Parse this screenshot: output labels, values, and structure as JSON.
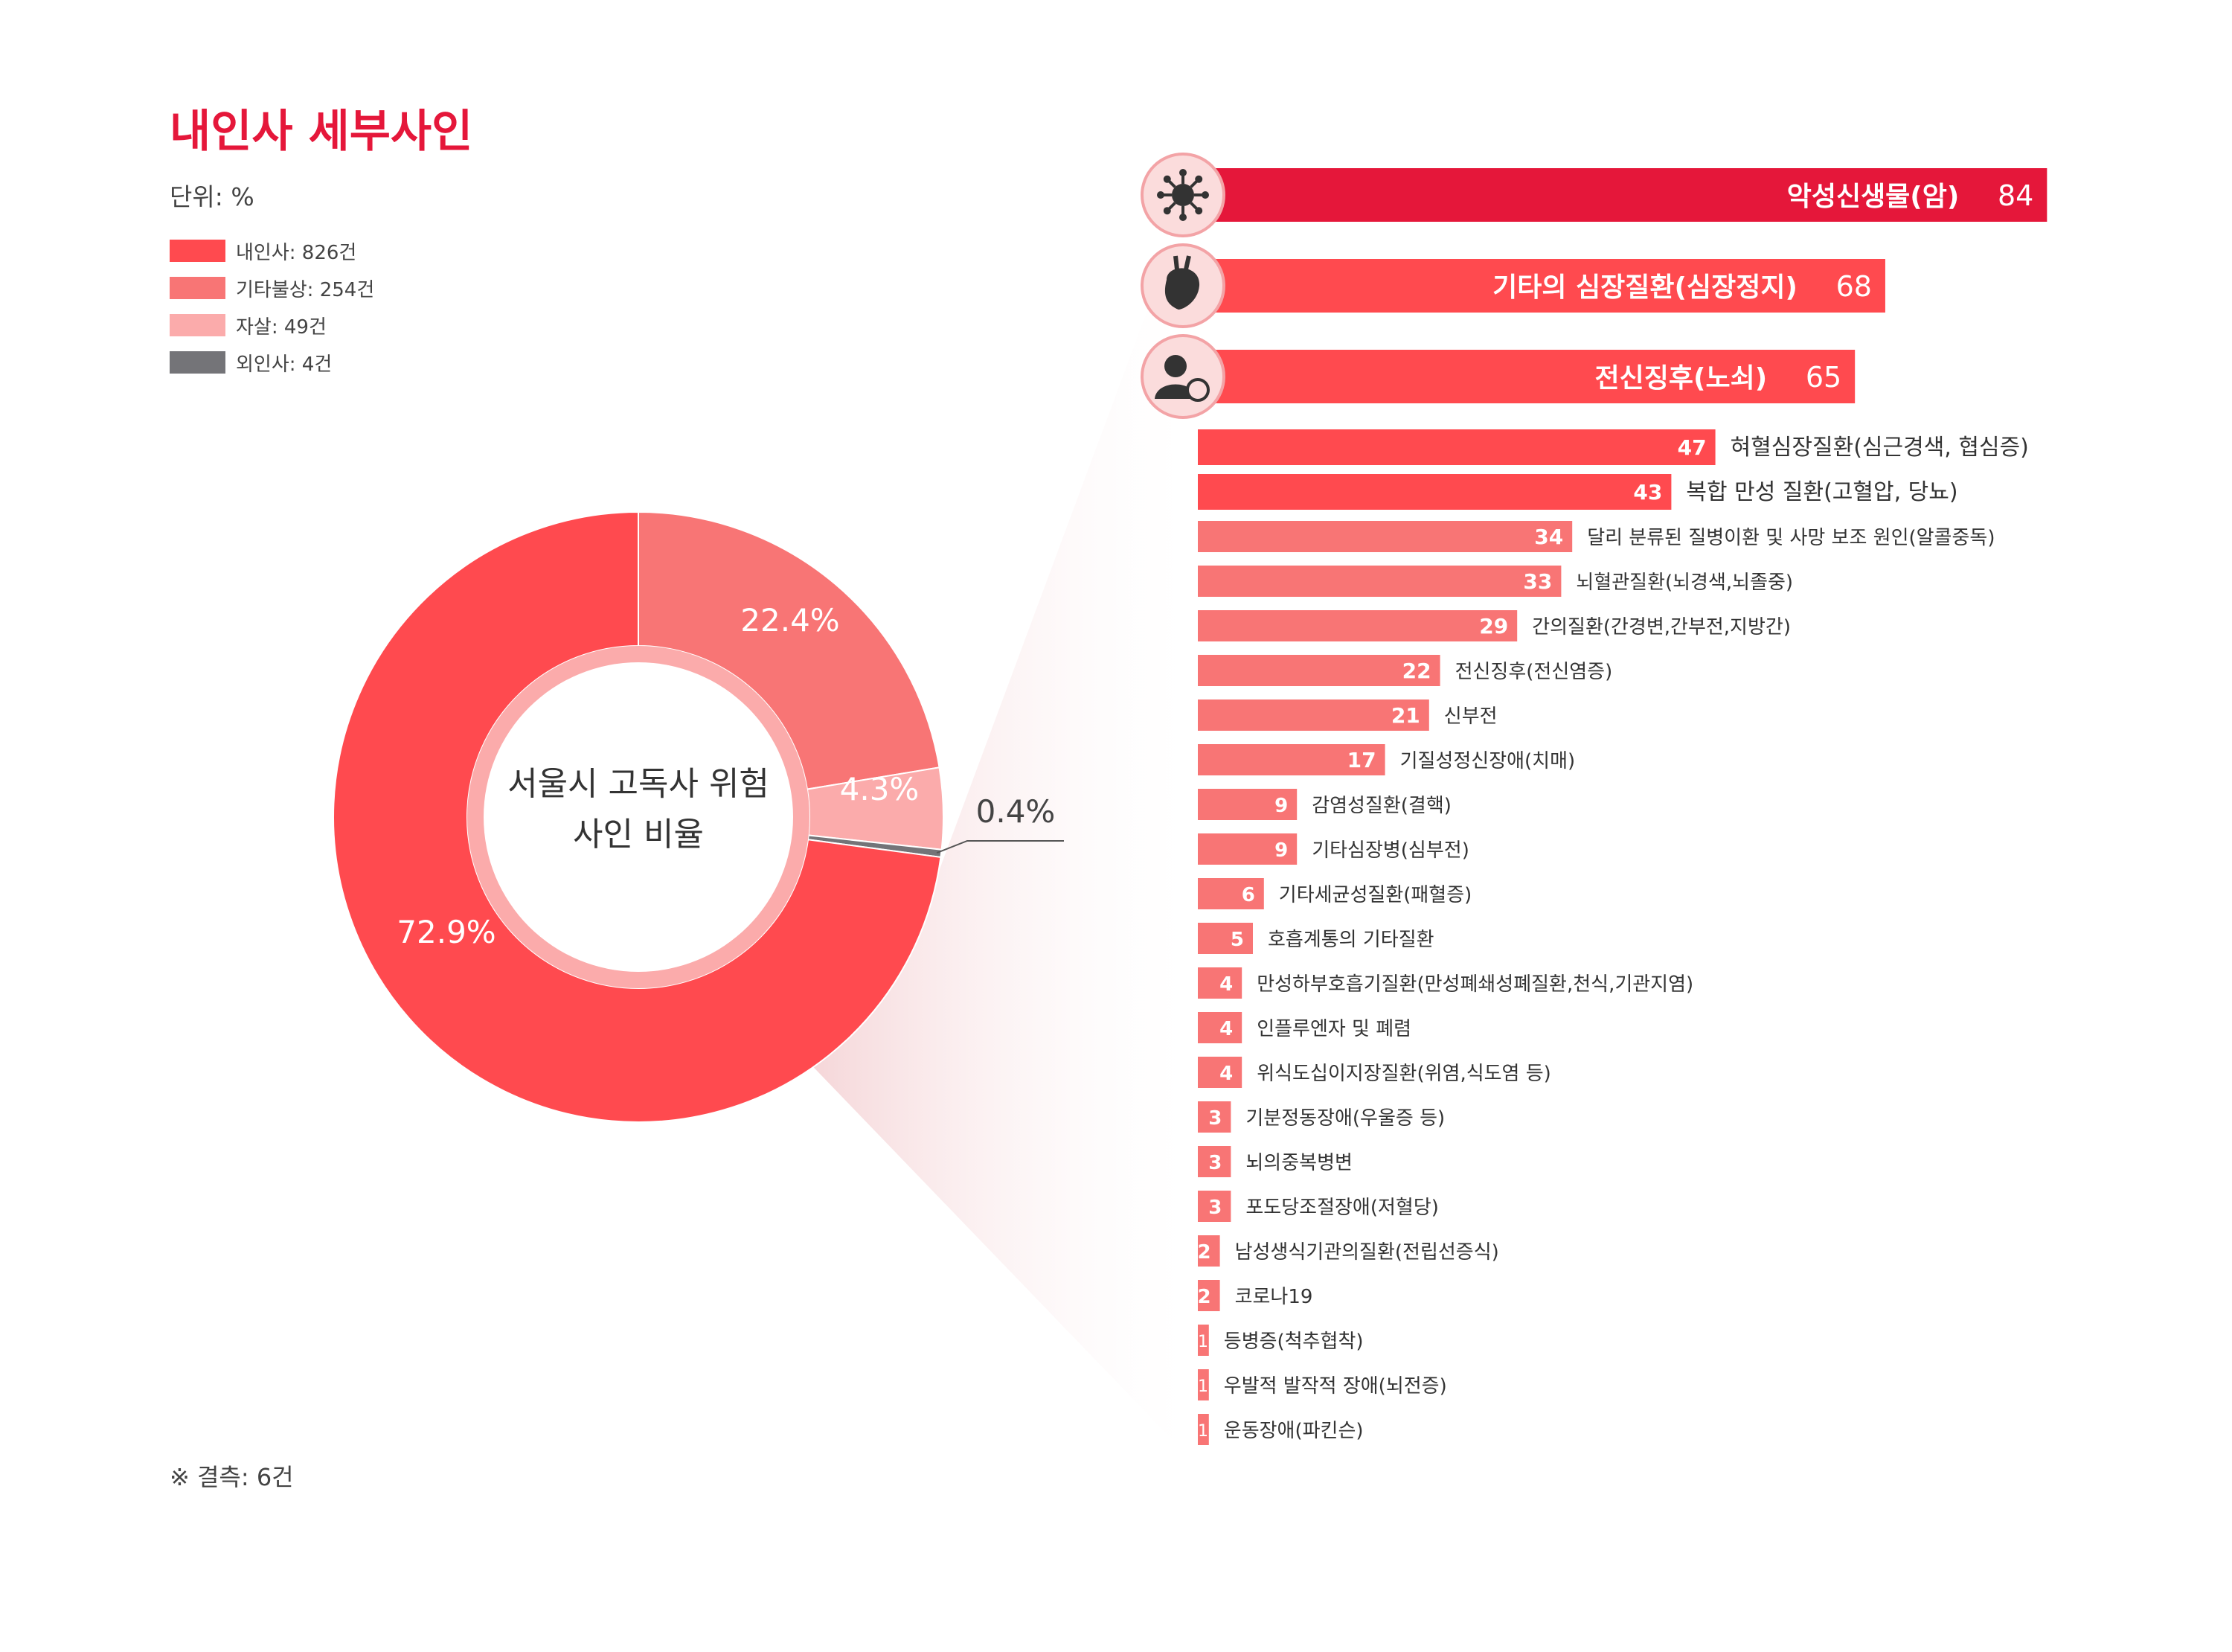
{
  "title": "내인사 세부사인",
  "unit": "단위: %",
  "legend": [
    {
      "label": "내인사: 826건",
      "color": "#ff4a4f"
    },
    {
      "label": "기타불상: 254건",
      "color": "#f87575"
    },
    {
      "label": "자살: 49건",
      "color": "#fbabab"
    },
    {
      "label": "외인사: 4건",
      "color": "#747478"
    }
  ],
  "footnote": "※ 결측: 6건",
  "chart_data": [
    {
      "type": "pie",
      "subtype": "donut",
      "center_label": [
        "서울시 고독사 위험",
        "사인 비율"
      ],
      "categories": [
        "내인사",
        "기타불상",
        "자살",
        "외인사"
      ],
      "values": [
        72.9,
        22.4,
        4.3,
        0.4
      ],
      "value_labels": [
        "72.9%",
        "22.4%",
        "4.3%",
        "0.4%"
      ],
      "colors": [
        "#ff4a4f",
        "#f87575",
        "#fbabab",
        "#747478"
      ]
    },
    {
      "type": "bar",
      "orientation": "horizontal",
      "top_highlighted": [
        {
          "label": "악성신생물(암)",
          "value": 84,
          "icon": "virus-icon",
          "color": "#e5173a"
        },
        {
          "label": "기타의 심장질환(심장정지)",
          "value": 68,
          "icon": "heart-icon",
          "color": "#ff4a4f"
        },
        {
          "label": "전신징후(노쇠)",
          "value": 65,
          "icon": "elderly-person-icon",
          "color": "#ff4a4f"
        }
      ],
      "categories": [
        "혀혈심장질환(심근경색, 협심증)",
        "복합 만성 질환(고혈압, 당뇨)",
        "달리 분류된 질병이환 및 사망 보조 원인(알콜중독)",
        "뇌혈관질환(뇌경색,뇌졸중)",
        "간의질환(간경변,간부전,지방간)",
        "전신징후(전신염증)",
        "신부전",
        "기질성정신장애(치매)",
        "감염성질환(결핵)",
        "기타심장병(심부전)",
        "기타세균성질환(패혈증)",
        "호흡계통의 기타질환",
        "만성하부호흡기질환(만성폐쇄성폐질환,천식,기관지염)",
        "인플루엔자 및 폐렴",
        "위식도십이지장질환(위염,식도염 등)",
        "기분정동장애(우울증 등)",
        "뇌의중복병변",
        "포도당조절장애(저혈당)",
        "남성생식기관의질환(전립선증식)",
        "코로나19",
        "등병증(척추협착)",
        "우발적 발작적 장애(뇌전증)",
        "운동장애(파킨슨)"
      ],
      "values": [
        47,
        43,
        34,
        33,
        29,
        22,
        21,
        17,
        9,
        9,
        6,
        5,
        4,
        4,
        4,
        3,
        3,
        3,
        2,
        2,
        1,
        1,
        1
      ],
      "color_big": "#ff4a4f",
      "color_small": "#f87575"
    }
  ]
}
